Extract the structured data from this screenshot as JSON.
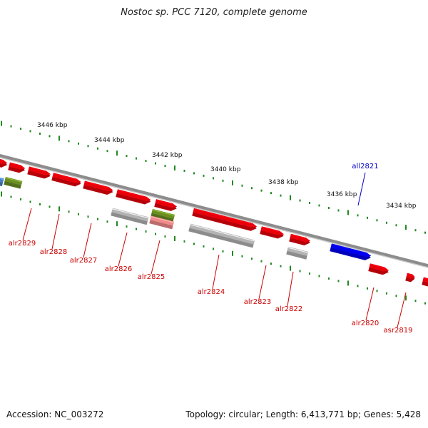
{
  "header": {
    "title": "Nostoc sp. PCC 7120, complete genome"
  },
  "footer": {
    "accession": "Accession: NC_003272",
    "summary": "Topology: circular; Length: 6,413,771 bp; Genes: 5,428"
  },
  "colors": {
    "reverse_gene": "#e8000b",
    "forward_gene": "#0000ee",
    "hypothetical_gene": "#b4b4b4",
    "olive_gene": "#6b8e23",
    "blue_partial": "#4a7fc0",
    "pink_partial": "#f08a8a",
    "backbone": "#8c8c8c",
    "tick": "#1f8a1f",
    "reverse_label": "#cc0000",
    "forward_label": "#0000cc"
  },
  "scale_labels": [
    "3446 kbp",
    "3444 kbp",
    "3442 kbp",
    "3440 kbp",
    "3438 kbp",
    "3436 kbp",
    "3434 kbp"
  ],
  "gene_labels": [
    {
      "name": "alr2829",
      "strand": "reverse"
    },
    {
      "name": "alr2828",
      "strand": "reverse"
    },
    {
      "name": "alr2827",
      "strand": "reverse"
    },
    {
      "name": "alr2826",
      "strand": "reverse"
    },
    {
      "name": "alr2825",
      "strand": "reverse"
    },
    {
      "name": "alr2824",
      "strand": "reverse"
    },
    {
      "name": "alr2823",
      "strand": "reverse"
    },
    {
      "name": "alr2822",
      "strand": "reverse"
    },
    {
      "name": "all2821",
      "strand": "forward"
    },
    {
      "name": "alr2820",
      "strand": "reverse"
    },
    {
      "name": "asr2819",
      "strand": "reverse"
    }
  ]
}
